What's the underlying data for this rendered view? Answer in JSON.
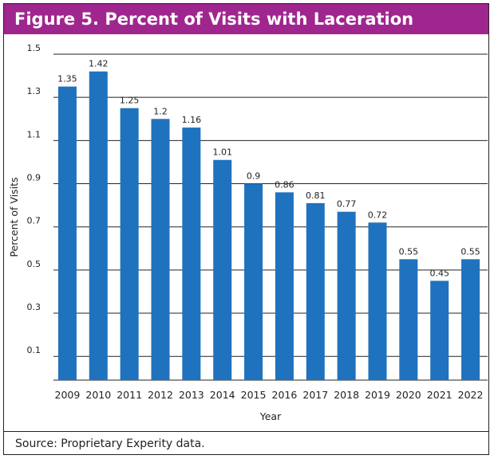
{
  "figure": {
    "title": "Figure 5. Percent of Visits with Laceration",
    "source": "Source: Proprietary Experity data."
  },
  "colors": {
    "title_bar": "#a0268f",
    "bar": "#1f72bd",
    "grid": "#222222"
  },
  "chart_data": {
    "type": "bar",
    "title": "",
    "xlabel": "Year",
    "ylabel": "Percent of Visits",
    "categories": [
      "2009",
      "2010",
      "2011",
      "2012",
      "2013",
      "2014",
      "2015",
      "2016",
      "2017",
      "2018",
      "2019",
      "2020",
      "2021",
      "2022"
    ],
    "values": [
      1.35,
      1.42,
      1.25,
      1.2,
      1.16,
      1.01,
      0.9,
      0.86,
      0.81,
      0.77,
      0.72,
      0.55,
      0.45,
      0.55
    ],
    "value_labels": [
      "1.35",
      "1.42",
      "1.25",
      "1.2",
      "1.16",
      "1.01",
      "0.9",
      "0.86",
      "0.81",
      "0.77",
      "0.72",
      "0.55",
      "0.45",
      "0.55"
    ],
    "yticks": [
      "0.1",
      "0.3",
      "0.5",
      "0.7",
      "0.9",
      "1.1",
      "1.3",
      "1.5"
    ],
    "ylim": [
      -0.01,
      1.5
    ],
    "grid": true,
    "legend": false
  }
}
